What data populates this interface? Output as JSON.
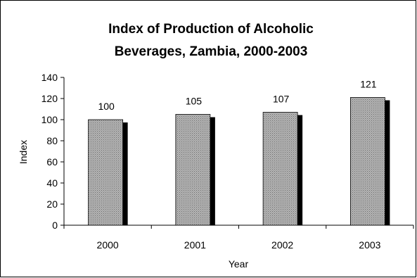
{
  "chart_data": {
    "type": "bar",
    "title": "Index of Production of Alcoholic Beverages, Zambia, 2000-2003",
    "title_lines": [
      "Index of Production of Alcoholic",
      "Beverages, Zambia, 2000-2003"
    ],
    "xlabel": "Year",
    "ylabel": "Index",
    "categories": [
      "2000",
      "2001",
      "2002",
      "2003"
    ],
    "values": [
      100,
      105,
      107,
      121
    ],
    "data_labels": [
      "100",
      "105",
      "107",
      "121"
    ],
    "ylim": [
      0,
      140
    ],
    "yticks": [
      0,
      20,
      40,
      60,
      80,
      100,
      120,
      140
    ],
    "ytick_labels": [
      "0",
      "20",
      "40",
      "60",
      "80",
      "100",
      "120",
      "140"
    ],
    "grid": false,
    "legend": "none",
    "colors": {
      "bar_fill": "#a8a8a8",
      "bar_shadow": "#000000",
      "axis": "#000000",
      "border": "#000000"
    }
  }
}
